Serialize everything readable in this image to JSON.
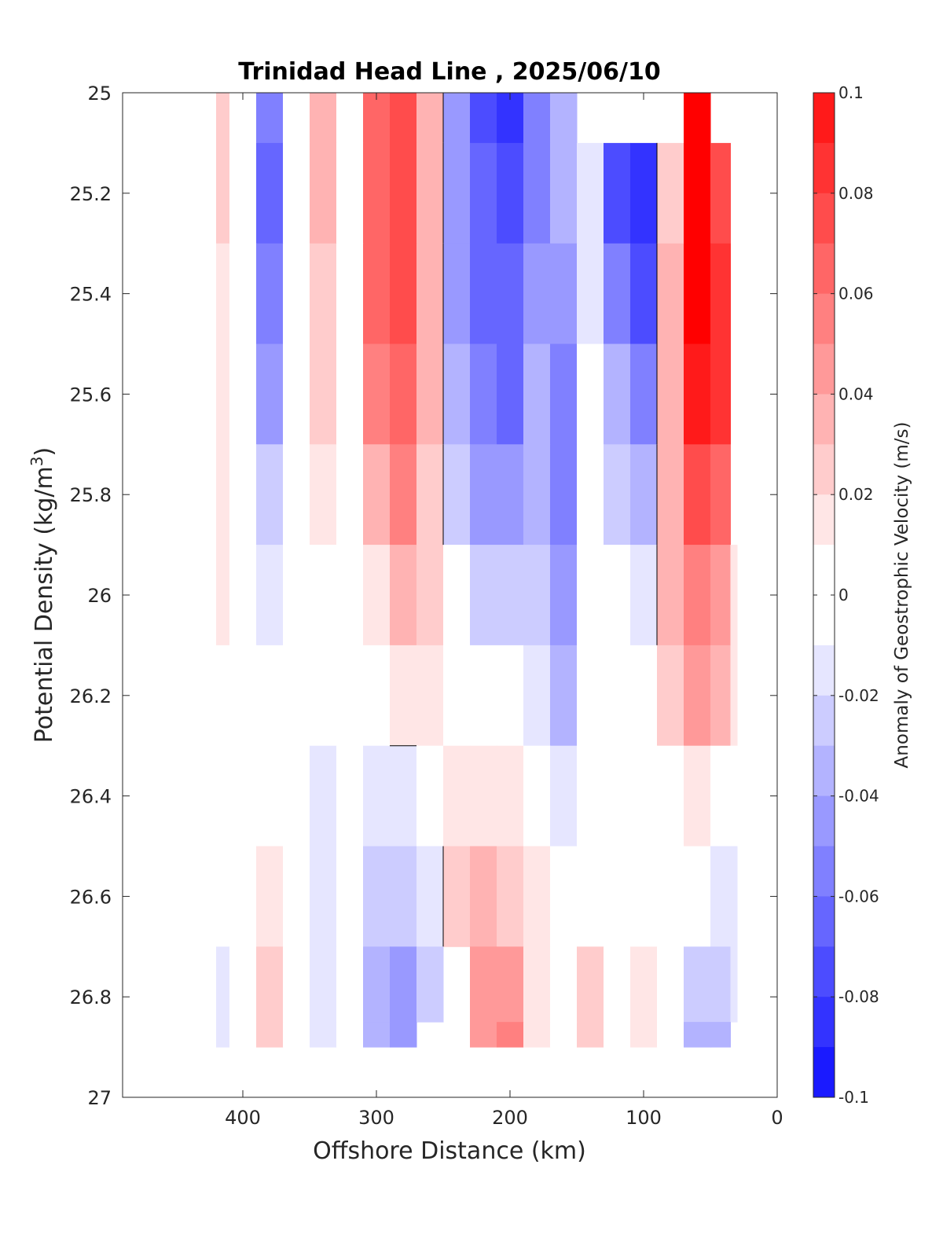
{
  "chart_data": {
    "type": "heatmap",
    "title": "Trinidad Head Line , 2025/06/10",
    "xlabel": "Offshore Distance (km)",
    "ylabel_main": "Potential Density (kg/m",
    "ylabel_sup": "3",
    "ylabel_close": ")",
    "colorbar_label": "Anomaly of Geostrophic Velocity (m/s)",
    "x_ticks": [
      400,
      300,
      200,
      100,
      0
    ],
    "x_tick_labels": [
      "400",
      "300",
      "200",
      "100",
      "0"
    ],
    "y_ticks": [
      25,
      25.2,
      25.4,
      25.6,
      25.8,
      26,
      26.2,
      26.4,
      26.6,
      26.8,
      27
    ],
    "y_tick_labels": [
      "25",
      "25.2",
      "25.4",
      "25.6",
      "25.8",
      "26",
      "26.2",
      "26.4",
      "26.6",
      "26.8",
      "27"
    ],
    "xlim": [
      490,
      0
    ],
    "ylim": [
      25,
      27
    ],
    "x_reversed": true,
    "y_reversed": true,
    "colorbar_ticks": [
      0.1,
      0.08,
      0.06,
      0.04,
      0.02,
      0,
      -0.02,
      -0.04,
      -0.06,
      -0.08,
      -0.1
    ],
    "colorbar_tick_labels": [
      "0.1",
      "0.08",
      "0.06",
      "0.04",
      "0.02",
      "0",
      "-0.02",
      "-0.04",
      "-0.06",
      "-0.08",
      "-0.1"
    ],
    "clim": [
      -0.1,
      0.1
    ],
    "level_step": 0.01,
    "colormap": "blue-white-red",
    "colors": {
      "negative": "#0000ff",
      "zero": "#ffffff",
      "positive": "#ff0000",
      "zero_contour": "#000000"
    },
    "x": [
      420,
      400,
      380,
      360,
      340,
      320,
      300,
      280,
      260,
      240,
      220,
      200,
      180,
      160,
      140,
      120,
      100,
      80,
      60,
      40,
      30
    ],
    "y": [
      25.0,
      25.2,
      25.4,
      25.6,
      25.8,
      26.0,
      26.2,
      26.4,
      26.6,
      26.8,
      26.9
    ],
    "z": [
      [
        0.02,
        0.0,
        -0.05,
        0.0,
        0.03,
        0.0,
        0.06,
        0.07,
        0.03,
        -0.04,
        -0.07,
        -0.08,
        -0.05,
        -0.03,
        null,
        null,
        null,
        null,
        0.1,
        null,
        null
      ],
      [
        0.02,
        0.0,
        -0.06,
        0.0,
        0.03,
        0.0,
        0.06,
        0.07,
        0.03,
        -0.04,
        -0.06,
        -0.07,
        -0.05,
        -0.03,
        -0.01,
        -0.07,
        -0.08,
        0.02,
        0.1,
        0.07,
        null
      ],
      [
        0.01,
        0.0,
        -0.05,
        0.0,
        0.02,
        0.0,
        0.06,
        0.07,
        0.03,
        -0.04,
        -0.06,
        -0.06,
        -0.04,
        -0.04,
        -0.01,
        -0.05,
        -0.07,
        0.03,
        0.1,
        0.08,
        null
      ],
      [
        0.01,
        0.0,
        -0.04,
        0.0,
        0.02,
        0.0,
        0.05,
        0.06,
        0.03,
        -0.03,
        -0.05,
        -0.06,
        -0.03,
        -0.05,
        0.0,
        -0.03,
        -0.05,
        0.03,
        0.09,
        0.08,
        null
      ],
      [
        0.01,
        0.0,
        -0.02,
        0.0,
        0.01,
        0.0,
        0.03,
        0.05,
        0.02,
        -0.02,
        -0.04,
        -0.04,
        -0.03,
        -0.05,
        0.0,
        -0.02,
        -0.03,
        0.03,
        0.07,
        0.06,
        null
      ],
      [
        0.01,
        0.0,
        -0.01,
        0.0,
        0.0,
        0.0,
        0.01,
        0.03,
        0.02,
        0.0,
        -0.02,
        -0.02,
        -0.02,
        -0.04,
        0.0,
        0.0,
        -0.01,
        0.03,
        0.05,
        0.04,
        0.01
      ],
      [
        0.0,
        0.0,
        0.0,
        0.0,
        0.0,
        0.0,
        0.0,
        0.01,
        0.01,
        0.0,
        0.0,
        0.0,
        -0.01,
        -0.03,
        0.0,
        0.0,
        0.0,
        0.02,
        0.04,
        0.03,
        0.01
      ],
      [
        0.0,
        0.0,
        0.0,
        0.0,
        -0.01,
        0.0,
        -0.01,
        -0.01,
        0.0,
        0.01,
        0.01,
        0.01,
        0.0,
        -0.01,
        0.0,
        0.0,
        0.0,
        0.0,
        0.01,
        0.0,
        0.0
      ],
      [
        0.0,
        0.0,
        0.01,
        0.0,
        -0.01,
        0.0,
        -0.02,
        -0.02,
        -0.01,
        0.02,
        0.03,
        0.02,
        0.01,
        0.0,
        0.0,
        0.0,
        0.0,
        0.0,
        0.0,
        -0.01,
        -0.01
      ],
      [
        -0.01,
        0.0,
        0.02,
        0.0,
        -0.01,
        0.0,
        -0.03,
        -0.04,
        -0.02,
        null,
        0.04,
        0.04,
        0.01,
        0.0,
        0.02,
        0.0,
        0.01,
        0.0,
        -0.02,
        -0.02,
        -0.01
      ],
      [
        -0.01,
        0.0,
        0.02,
        0.0,
        -0.01,
        0.0,
        -0.03,
        -0.04,
        null,
        null,
        0.04,
        0.05,
        0.01,
        0.0,
        0.02,
        0.0,
        0.01,
        0.0,
        -0.03,
        -0.03,
        null
      ]
    ]
  }
}
